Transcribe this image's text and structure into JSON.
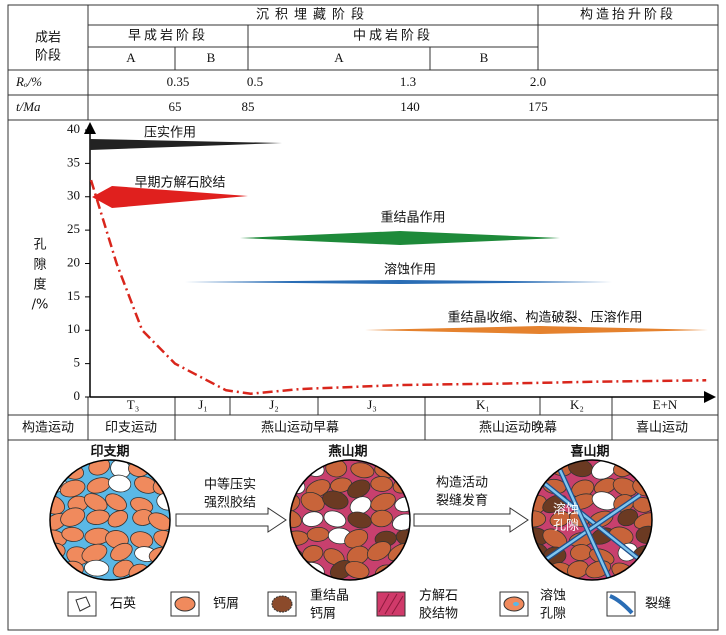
{
  "header": {
    "stage_burial": "沉积埋藏阶段",
    "stage_uplift": "构造抬升阶段",
    "diagenesis_label": [
      "成岩",
      "阶段"
    ],
    "early": "早成岩阶段",
    "middle": "中成岩阶段",
    "substages": [
      "A",
      "B",
      "A",
      "B"
    ],
    "ro_label": "Rₒ/%",
    "ro_values": [
      "0.35",
      "0.5",
      "1.3",
      "2.0"
    ],
    "t_label": "t/Ma",
    "t_values": [
      65,
      85,
      140,
      175
    ]
  },
  "chart_data": {
    "type": "line",
    "y_label": [
      "孔",
      "隙",
      "度",
      "/%"
    ],
    "ylim": [
      0,
      40
    ],
    "yticks": [
      0,
      5,
      10,
      15,
      20,
      25,
      30,
      35,
      40
    ],
    "x": [
      42,
      49,
      56,
      65,
      79,
      86,
      103,
      137,
      165,
      192,
      221
    ],
    "values": [
      32.5,
      20,
      10,
      5,
      1,
      0.5,
      1.2,
      1.8,
      2.0,
      2.3,
      2.5
    ],
    "color": "#d9261c",
    "processes": [
      {
        "label": "压实作用",
        "color": "#222222"
      },
      {
        "label": "早期方解石胶结",
        "color": "#e0201e"
      },
      {
        "label": "重结晶作用",
        "color": "#1e8a3a"
      },
      {
        "label": "溶蚀作用",
        "color": "#2a6db5"
      },
      {
        "label": "重结晶收缩、构造破裂、压溶作用",
        "color": "#e5822e"
      }
    ],
    "periods": [
      "T₃",
      "J₁",
      "J₂",
      "J₃",
      "K₁",
      "K₂",
      "E+N"
    ]
  },
  "tectonics": {
    "label": "构造运动",
    "events": [
      "印支运动",
      "燕山运动早幕",
      "燕山运动晚幕",
      "喜山运动"
    ]
  },
  "illustration": {
    "stages": [
      "印支期",
      "燕山期",
      "喜山期"
    ],
    "arrows": [
      [
        "中等压实",
        "强烈胶结"
      ],
      [
        "构造活动",
        "裂缝发育"
      ]
    ],
    "callout": [
      "溶蚀",
      "孔隙"
    ],
    "legend": [
      [
        "石英"
      ],
      [
        "钙屑"
      ],
      [
        "重结晶",
        "钙屑"
      ],
      [
        "方解石",
        "胶结物"
      ],
      [
        "溶蚀",
        "孔隙"
      ],
      [
        "裂缝"
      ]
    ]
  }
}
